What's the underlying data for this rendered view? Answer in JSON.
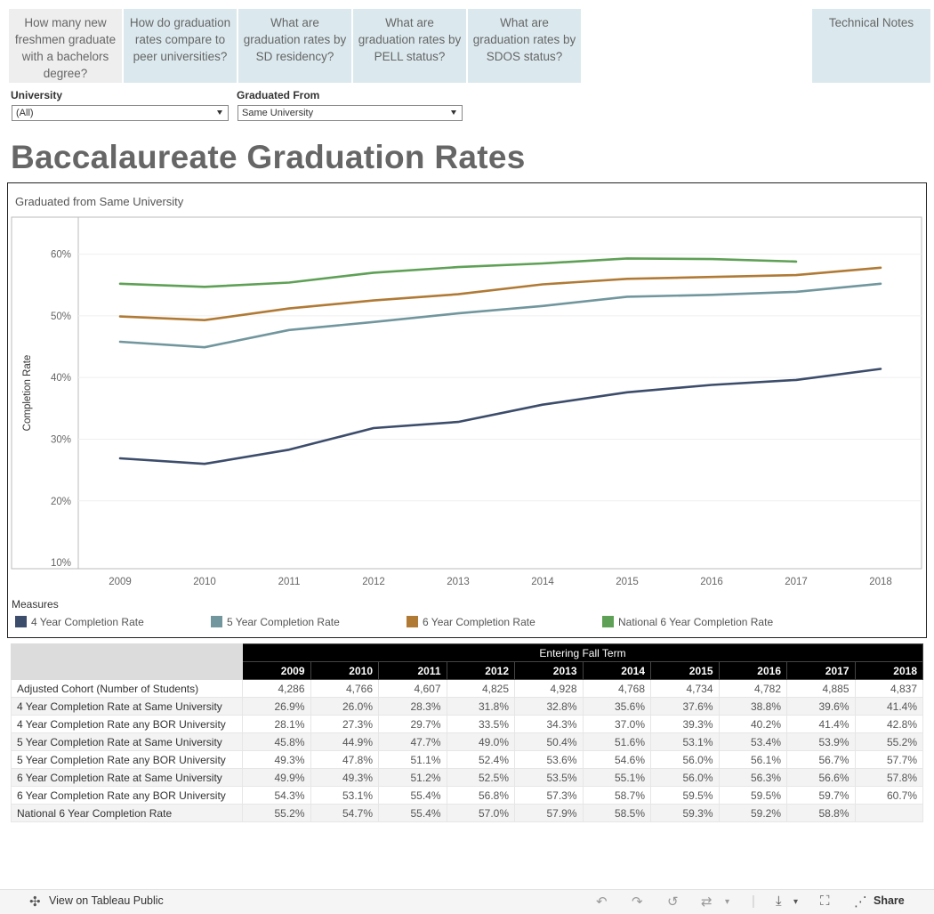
{
  "nav": {
    "tabs": [
      {
        "label": "How many new freshmen graduate with a bachelors degree?"
      },
      {
        "label": "How do graduation rates compare to peer universities?"
      },
      {
        "label": "What are graduation rates by SD residency?"
      },
      {
        "label": "What are graduation rates by PELL status?"
      },
      {
        "label": "What are graduation rates by SDOS status?"
      }
    ],
    "technical_notes": "Technical Notes"
  },
  "filters": {
    "university": {
      "label": "University",
      "value": "(All)"
    },
    "graduated_from": {
      "label": "Graduated From",
      "value": "Same University"
    }
  },
  "page_title": "Baccalaureate Graduation Rates",
  "chart": {
    "subtitle": "Graduated from  Same University",
    "legend_title": "Measures"
  },
  "chart_data": {
    "type": "line",
    "x": [
      2009,
      2010,
      2011,
      2012,
      2013,
      2014,
      2015,
      2016,
      2017,
      2018
    ],
    "ylabel": "Completion Rate",
    "yticks": [
      "10%",
      "20%",
      "30%",
      "40%",
      "50%",
      "60%"
    ],
    "ylim": [
      9,
      66
    ],
    "grid": true,
    "legend_position": "bottom",
    "series": [
      {
        "name": "4 Year Completion Rate",
        "color": "#3c4c6b",
        "values": [
          26.9,
          26.0,
          28.3,
          31.8,
          32.8,
          35.6,
          37.6,
          38.8,
          39.6,
          41.4
        ]
      },
      {
        "name": "5 Year Completion Rate",
        "color": "#71969e",
        "values": [
          45.8,
          44.9,
          47.7,
          49.0,
          50.4,
          51.6,
          53.1,
          53.4,
          53.9,
          55.2
        ]
      },
      {
        "name": "6 Year Completion Rate",
        "color": "#b07a35",
        "values": [
          49.9,
          49.3,
          51.2,
          52.5,
          53.5,
          55.1,
          56.0,
          56.3,
          56.6,
          57.8
        ]
      },
      {
        "name": "National 6 Year Completion Rate",
        "color": "#5ea055",
        "values": [
          55.2,
          54.7,
          55.4,
          57.0,
          57.9,
          58.5,
          59.3,
          59.2,
          58.8,
          null
        ]
      }
    ]
  },
  "table": {
    "header": "Entering Fall Term",
    "years": [
      "2009",
      "2010",
      "2011",
      "2012",
      "2013",
      "2014",
      "2015",
      "2016",
      "2017",
      "2018"
    ],
    "rows": [
      {
        "label": "Adjusted Cohort (Number of Students)",
        "values": [
          "4,286",
          "4,766",
          "4,607",
          "4,825",
          "4,928",
          "4,768",
          "4,734",
          "4,782",
          "4,885",
          "4,837"
        ]
      },
      {
        "label": "4 Year Completion Rate at Same University",
        "values": [
          "26.9%",
          "26.0%",
          "28.3%",
          "31.8%",
          "32.8%",
          "35.6%",
          "37.6%",
          "38.8%",
          "39.6%",
          "41.4%"
        ]
      },
      {
        "label": "4 Year Completion Rate any BOR University",
        "values": [
          "28.1%",
          "27.3%",
          "29.7%",
          "33.5%",
          "34.3%",
          "37.0%",
          "39.3%",
          "40.2%",
          "41.4%",
          "42.8%"
        ]
      },
      {
        "label": "5 Year Completion Rate at Same University",
        "values": [
          "45.8%",
          "44.9%",
          "47.7%",
          "49.0%",
          "50.4%",
          "51.6%",
          "53.1%",
          "53.4%",
          "53.9%",
          "55.2%"
        ]
      },
      {
        "label": "5 Year Completion Rate any BOR University",
        "values": [
          "49.3%",
          "47.8%",
          "51.1%",
          "52.4%",
          "53.6%",
          "54.6%",
          "56.0%",
          "56.1%",
          "56.7%",
          "57.7%"
        ]
      },
      {
        "label": "6 Year Completion Rate at Same University",
        "values": [
          "49.9%",
          "49.3%",
          "51.2%",
          "52.5%",
          "53.5%",
          "55.1%",
          "56.0%",
          "56.3%",
          "56.6%",
          "57.8%"
        ]
      },
      {
        "label": "6 Year Completion Rate any BOR University",
        "values": [
          "54.3%",
          "53.1%",
          "55.4%",
          "56.8%",
          "57.3%",
          "58.7%",
          "59.5%",
          "59.5%",
          "59.7%",
          "60.7%"
        ]
      },
      {
        "label": "National 6 Year Completion Rate",
        "values": [
          "55.2%",
          "54.7%",
          "55.4%",
          "57.0%",
          "57.9%",
          "58.5%",
          "59.3%",
          "59.2%",
          "58.8%",
          ""
        ]
      }
    ]
  },
  "toolbar": {
    "view_label": "View on Tableau Public",
    "share_label": "Share",
    "icons": [
      "tableau-logo-icon",
      "undo-icon",
      "redo-icon",
      "revert-icon",
      "refresh-icon",
      "download-icon",
      "fullscreen-icon",
      "share-icon"
    ]
  }
}
